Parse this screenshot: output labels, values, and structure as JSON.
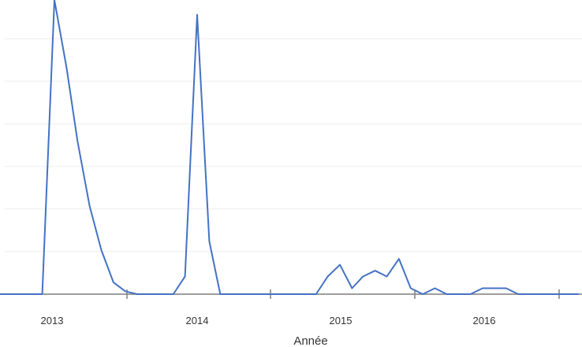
{
  "chart_data": {
    "type": "line",
    "title": "",
    "xlabel": "Année",
    "ylabel": "",
    "x_tick_labels": [
      "2013",
      "2014",
      "2015",
      "2016"
    ],
    "grid": true,
    "legend": "none",
    "x": [
      "2012-08-01",
      "2012-09-01",
      "2012-10-01",
      "2012-11-01",
      "2012-12-01",
      "2013-01-01",
      "2013-02-01",
      "2013-03-01",
      "2013-04-01",
      "2013-05-01",
      "2013-06-01",
      "2013-07-01",
      "2013-08-01",
      "2013-09-01",
      "2013-10-01",
      "2013-11-01",
      "2013-12-01",
      "2014-01-01",
      "2014-02-01",
      "2014-03-01",
      "2014-04-01",
      "2014-05-01",
      "2014-06-01",
      "2014-07-01",
      "2014-08-01",
      "2014-09-01",
      "2014-10-01",
      "2014-11-01",
      "2014-12-01",
      "2015-01-01",
      "2015-02-01",
      "2015-03-01",
      "2015-04-01",
      "2015-05-01",
      "2015-06-01",
      "2015-07-01",
      "2015-08-01",
      "2015-09-01",
      "2015-10-01",
      "2015-11-01",
      "2015-12-01",
      "2016-01-01",
      "2016-02-01",
      "2016-03-01",
      "2016-04-01",
      "2016-05-01",
      "2016-06-01",
      "2016-07-01",
      "2016-08-01",
      "2016-09-01"
    ],
    "series": [
      {
        "color": "#4472C4",
        "values": [
          0,
          0,
          0,
          0,
          0,
          100,
          77,
          52,
          30,
          15,
          4,
          1,
          0,
          0,
          0,
          0,
          6,
          95,
          18,
          0,
          0,
          0,
          0,
          0,
          0,
          0,
          0,
          0,
          6,
          10,
          2,
          6,
          8,
          6,
          12,
          2,
          0,
          2,
          0,
          0,
          0,
          2,
          2,
          2,
          0,
          0,
          0,
          0,
          0,
          0
        ]
      }
    ],
    "ylim": [
      0,
      100
    ]
  }
}
